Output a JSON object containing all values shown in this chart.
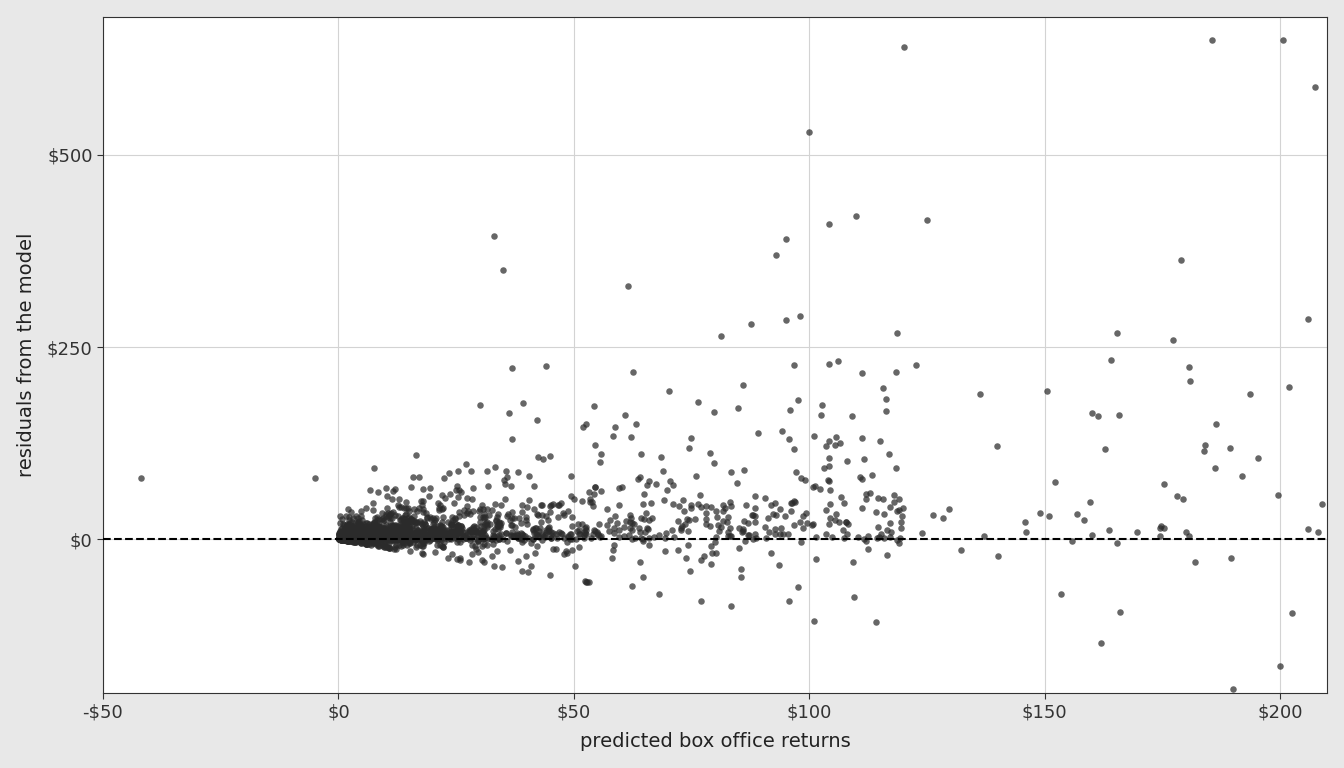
{
  "title": "",
  "xlabel": "predicted box office returns",
  "ylabel": "residuals from the model",
  "xlim": [
    -50,
    210
  ],
  "ylim": [
    -200,
    680
  ],
  "xticks": [
    -50,
    0,
    50,
    100,
    150,
    200
  ],
  "yticks": [
    0,
    250,
    500
  ],
  "xtick_labels": [
    "-$50",
    "$0",
    "$50",
    "$100",
    "$150",
    "$200"
  ],
  "ytick_labels": [
    "$0",
    "$250",
    "$500"
  ],
  "hline_y": 0,
  "panel_bg_color": "#ffffff",
  "fig_bg_color": "#e8e8e8",
  "grid_color": "#d3d3d3",
  "point_color": "#2b2b2b",
  "point_size": 22,
  "point_alpha": 0.72,
  "seed": 42,
  "n_points": 1900
}
